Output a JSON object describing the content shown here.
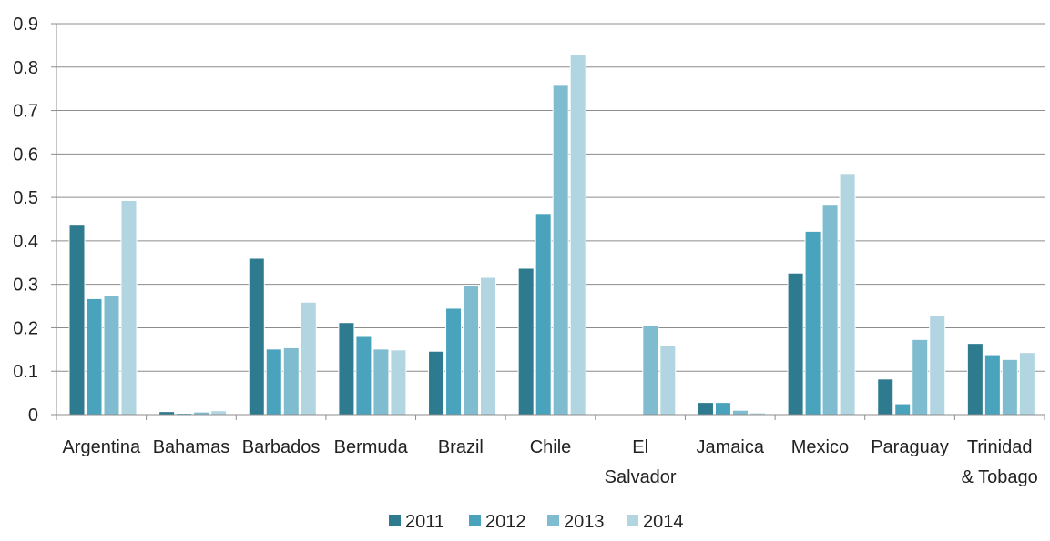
{
  "chart_data": {
    "type": "bar",
    "title": "",
    "xlabel": "",
    "ylabel": "",
    "ylim": [
      0,
      0.9
    ],
    "yticks": [
      "0",
      "0.1",
      "0.2",
      "0.3",
      "0.4",
      "0.5",
      "0.6",
      "0.7",
      "0.8",
      "0.9"
    ],
    "grid": true,
    "legend_position": "bottom",
    "categories": [
      [
        "Argentina"
      ],
      [
        "Bahamas"
      ],
      [
        "Barbados"
      ],
      [
        "Bermuda"
      ],
      [
        "Brazil"
      ],
      [
        "Chile"
      ],
      [
        "El",
        "Salvador"
      ],
      [
        "Jamaica"
      ],
      [
        "Mexico"
      ],
      [
        "Paraguay"
      ],
      [
        "Trinidad",
        "& Tobago"
      ]
    ],
    "series": [
      {
        "name": "2011",
        "color": "#2e7a8e",
        "values": [
          0.436,
          0.007,
          0.36,
          0.212,
          0.146,
          0.337,
          0.0,
          0.028,
          0.326,
          0.082,
          0.164
        ]
      },
      {
        "name": "2012",
        "color": "#4aa3bd",
        "values": [
          0.267,
          0.003,
          0.151,
          0.18,
          0.245,
          0.463,
          0.0,
          0.028,
          0.422,
          0.025,
          0.138
        ]
      },
      {
        "name": "2013",
        "color": "#7fbcd0",
        "values": [
          0.275,
          0.006,
          0.154,
          0.151,
          0.298,
          0.758,
          0.205,
          0.01,
          0.482,
          0.173,
          0.127
        ]
      },
      {
        "name": "2014",
        "color": "#b1d5e1",
        "values": [
          0.493,
          0.009,
          0.259,
          0.149,
          0.316,
          0.829,
          0.159,
          0.004,
          0.555,
          0.227,
          0.143
        ]
      }
    ]
  }
}
